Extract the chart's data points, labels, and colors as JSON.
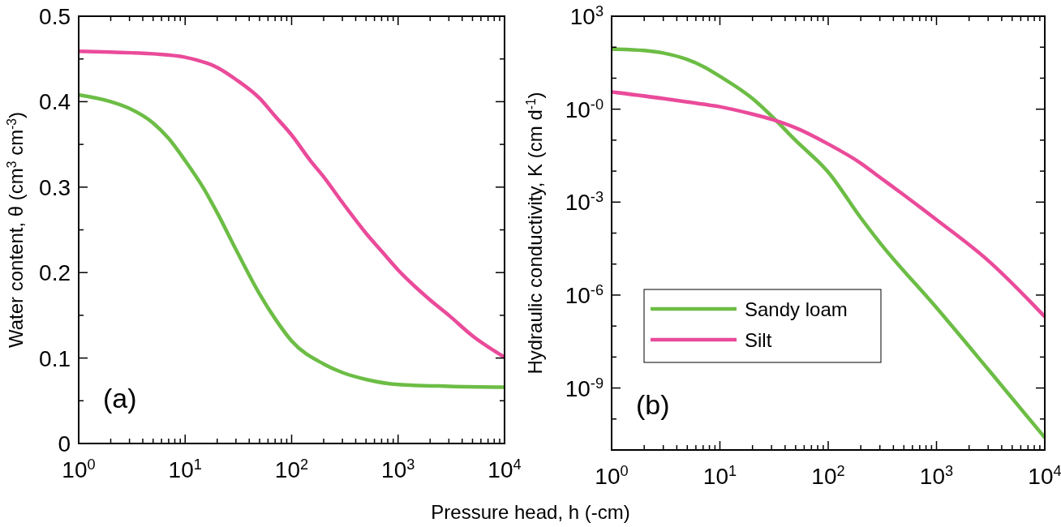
{
  "chart_data": [
    {
      "type": "line",
      "xlabel": "Pressure head, h (-cm)",
      "ylabel": "Water content, θ (cm$^{3}$ cm$^{-3}$)",
      "annotations": [
        "(a)"
      ],
      "log": "x",
      "grid": false,
      "legend": false,
      "xlim": [
        1,
        10000
      ],
      "ylim": [
        0,
        0.5
      ],
      "xticks": [
        {
          "value": 1,
          "label": "10$^{0}$"
        },
        {
          "value": 10,
          "label": "10$^{1}$"
        },
        {
          "value": 100,
          "label": "10$^{2}$"
        },
        {
          "value": 1000,
          "label": "10$^{3}$"
        },
        {
          "value": 10000,
          "label": "10$^{4}$"
        },
        {
          "value": 2,
          "label": null
        },
        {
          "value": 3,
          "label": null
        },
        {
          "value": 4,
          "label": null
        },
        {
          "value": 5,
          "label": null
        },
        {
          "value": 6,
          "label": null
        },
        {
          "value": 7,
          "label": null
        },
        {
          "value": 8,
          "label": null
        },
        {
          "value": 9,
          "label": null
        },
        {
          "value": 20,
          "label": null
        },
        {
          "value": 30,
          "label": null
        },
        {
          "value": 40,
          "label": null
        },
        {
          "value": 50,
          "label": null
        },
        {
          "value": 60,
          "label": null
        },
        {
          "value": 70,
          "label": null
        },
        {
          "value": 80,
          "label": null
        },
        {
          "value": 90,
          "label": null
        },
        {
          "value": 200,
          "label": null
        },
        {
          "value": 300,
          "label": null
        },
        {
          "value": 400,
          "label": null
        },
        {
          "value": 500,
          "label": null
        },
        {
          "value": 600,
          "label": null
        },
        {
          "value": 700,
          "label": null
        },
        {
          "value": 800,
          "label": null
        },
        {
          "value": 900,
          "label": null
        },
        {
          "value": 2000,
          "label": null
        },
        {
          "value": 3000,
          "label": null
        },
        {
          "value": 4000,
          "label": null
        },
        {
          "value": 5000,
          "label": null
        },
        {
          "value": 6000,
          "label": null
        },
        {
          "value": 7000,
          "label": null
        },
        {
          "value": 8000,
          "label": null
        },
        {
          "value": 9000,
          "label": null
        }
      ],
      "yticks": [
        0,
        0.1,
        0.2,
        0.3,
        0.4,
        0.5,
        {
          "value": 0.05,
          "label": null
        },
        {
          "value": 0.15,
          "label": null
        },
        {
          "value": 0.25,
          "label": null
        },
        {
          "value": 0.35,
          "label": null
        },
        {
          "value": 0.45,
          "label": null
        }
      ],
      "series": [
        {
          "color": "#6cbd45",
          "x": [
            1,
            2,
            3,
            5,
            7,
            10,
            15,
            20,
            30,
            50,
            70,
            100,
            200,
            300,
            500,
            1000,
            3000,
            10000
          ],
          "values": [
            0.408,
            0.4,
            0.392,
            0.375,
            0.357,
            0.331,
            0.298,
            0.27,
            0.227,
            0.175,
            0.146,
            0.12,
            0.093,
            0.083,
            0.075,
            0.069,
            0.067,
            0.066
          ]
        },
        {
          "color": "#ea4b9a",
          "x": [
            1,
            2,
            5,
            10,
            20,
            30,
            50,
            70,
            100,
            150,
            200,
            300,
            500,
            700,
            1000,
            2000,
            3000,
            5000,
            10000
          ],
          "values": [
            0.459,
            0.458,
            0.456,
            0.452,
            0.44,
            0.426,
            0.404,
            0.383,
            0.361,
            0.331,
            0.312,
            0.282,
            0.246,
            0.225,
            0.203,
            0.168,
            0.15,
            0.126,
            0.101
          ]
        }
      ]
    },
    {
      "type": "line",
      "ylabel": "Hydraulic conductivity, K (cm d$^{-1}$)",
      "annotations": [
        "(b)"
      ],
      "log": "xy",
      "grid": false,
      "legend": "bottom left",
      "xlim": [
        1,
        10000
      ],
      "ylim": [
        1e-11,
        1000
      ],
      "xticks": [
        {
          "value": 1,
          "label": "10$^{0}$"
        },
        {
          "value": 10,
          "label": "10$^{1}$"
        },
        {
          "value": 100,
          "label": "10$^{2}$"
        },
        {
          "value": 1000,
          "label": "10$^{3}$"
        },
        {
          "value": 10000,
          "label": "10$^{4}$"
        },
        {
          "value": 2,
          "label": null
        },
        {
          "value": 3,
          "label": null
        },
        {
          "value": 4,
          "label": null
        },
        {
          "value": 5,
          "label": null
        },
        {
          "value": 6,
          "label": null
        },
        {
          "value": 7,
          "label": null
        },
        {
          "value": 8,
          "label": null
        },
        {
          "value": 9,
          "label": null
        },
        {
          "value": 20,
          "label": null
        },
        {
          "value": 30,
          "label": null
        },
        {
          "value": 40,
          "label": null
        },
        {
          "value": 50,
          "label": null
        },
        {
          "value": 60,
          "label": null
        },
        {
          "value": 70,
          "label": null
        },
        {
          "value": 80,
          "label": null
        },
        {
          "value": 90,
          "label": null
        },
        {
          "value": 200,
          "label": null
        },
        {
          "value": 300,
          "label": null
        },
        {
          "value": 400,
          "label": null
        },
        {
          "value": 500,
          "label": null
        },
        {
          "value": 600,
          "label": null
        },
        {
          "value": 700,
          "label": null
        },
        {
          "value": 800,
          "label": null
        },
        {
          "value": 900,
          "label": null
        },
        {
          "value": 2000,
          "label": null
        },
        {
          "value": 3000,
          "label": null
        },
        {
          "value": 4000,
          "label": null
        },
        {
          "value": 5000,
          "label": null
        },
        {
          "value": 6000,
          "label": null
        },
        {
          "value": 7000,
          "label": null
        },
        {
          "value": 8000,
          "label": null
        },
        {
          "value": 9000,
          "label": null
        }
      ],
      "yticks": [
        {
          "value": 1000,
          "label": "10$^{3}$"
        },
        {
          "value": 1,
          "label": "10$^{-0}$"
        },
        {
          "value": 0.001,
          "label": "10$^{-3}$"
        },
        {
          "value": 1e-06,
          "label": "10$^{-6}$"
        },
        {
          "value": 1e-09,
          "label": "10$^{-9}$"
        },
        {
          "value": 100,
          "label": null
        },
        {
          "value": 10,
          "label": null
        },
        {
          "value": 0.1,
          "label": null
        },
        {
          "value": 0.01,
          "label": null
        },
        {
          "value": 0.0001,
          "label": null
        },
        {
          "value": 1e-05,
          "label": null
        },
        {
          "value": 1e-07,
          "label": null
        },
        {
          "value": 1e-08,
          "label": null
        },
        {
          "value": 1e-10,
          "label": null
        }
      ],
      "series": [
        {
          "name": "Sandy loam",
          "color": "#6cbd45",
          "x": [
            1,
            2,
            3,
            5,
            7,
            10,
            20,
            30,
            50,
            100,
            200,
            300,
            1000,
            3000,
            10000
          ],
          "values": [
            87,
            78,
            65,
            40,
            24,
            11.5,
            2.2,
            0.6,
            0.098,
            0.0093,
            0.00031,
            4.9e-05,
            3.9e-07,
            4e-09,
            2.5e-11
          ]
        },
        {
          "name": "Silt",
          "color": "#ea4b9a",
          "x": [
            1,
            3,
            5,
            10,
            20,
            30,
            50,
            100,
            200,
            300,
            500,
            1000,
            3000,
            10000
          ],
          "values": [
            3.6,
            2.2,
            1.7,
            1.2,
            0.69,
            0.47,
            0.25,
            0.075,
            0.018,
            0.0063,
            0.0017,
            0.00027,
            1.3e-05,
            2e-07
          ]
        }
      ]
    }
  ]
}
